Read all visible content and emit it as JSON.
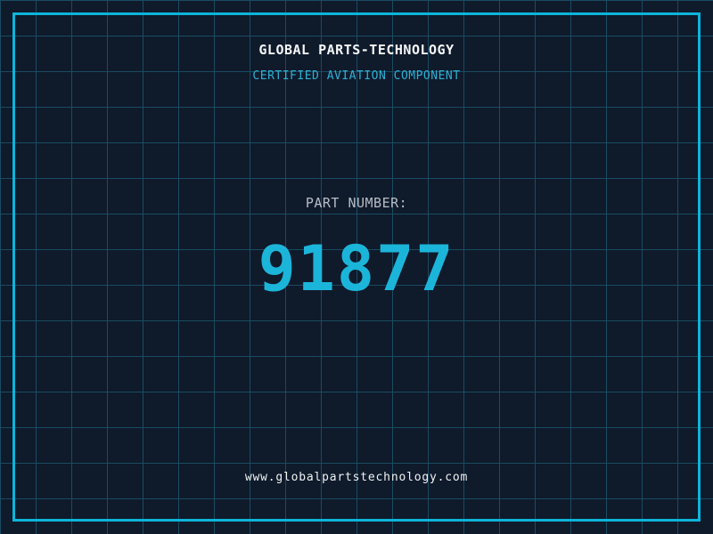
{
  "header": {
    "company": "GLOBAL PARTS-TECHNOLOGY",
    "certification": "CERTIFIED AVIATION COMPONENT"
  },
  "part": {
    "label": "PART NUMBER:",
    "number": "91877"
  },
  "footer": {
    "website": "www.globalpartstechnology.com"
  },
  "colors": {
    "background": "#0f1a2b",
    "grid_line": "#1a4c62",
    "frame_cyan": "#0db4da",
    "accent_cyan": "#1cb5da",
    "title_white": "#f5f7f7",
    "label_gray": "#b6bdc6"
  }
}
